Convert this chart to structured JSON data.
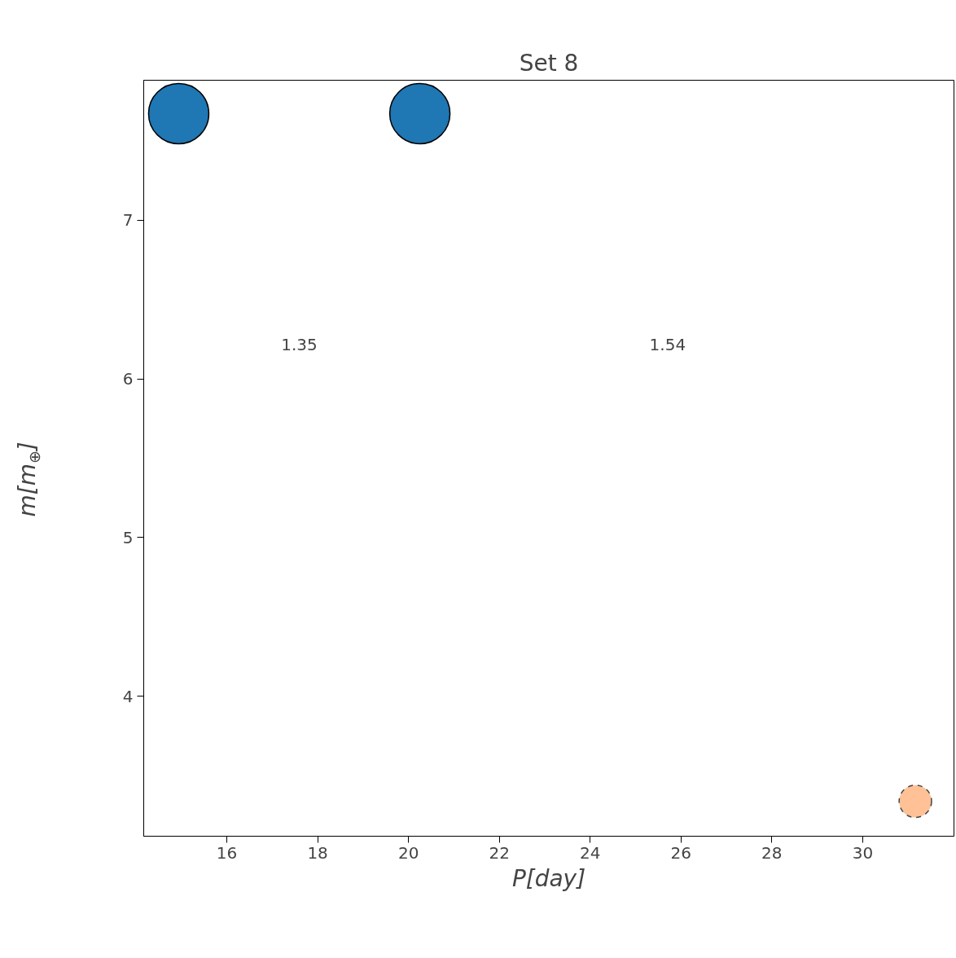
{
  "chart_data": {
    "type": "bubble",
    "title": "Set 8",
    "xlabel": "P[day]",
    "ylabel": "m[m$_{⊕}$]",
    "xlim": [
      14.17,
      32.01
    ],
    "ylim": [
      3.12,
      7.88
    ],
    "xticks": [
      16,
      18,
      20,
      22,
      24,
      26,
      28,
      30
    ],
    "yticks": [
      4,
      5,
      6,
      7
    ],
    "grid": false,
    "marker": "circle",
    "series": [
      {
        "color": "#1f77b4",
        "x": [
          14.94,
          20.25
        ],
        "values": [
          7.67,
          7.67
        ],
        "sizes": [
          1,
          1
        ],
        "line_style": "solid"
      },
      {
        "color": "#ffb27a",
        "x": [
          31.16
        ],
        "values": [
          3.34
        ],
        "sizes": [
          0.29
        ],
        "line_style": "dashed"
      }
    ],
    "annotations": [
      "1.35",
      "1.54"
    ]
  }
}
